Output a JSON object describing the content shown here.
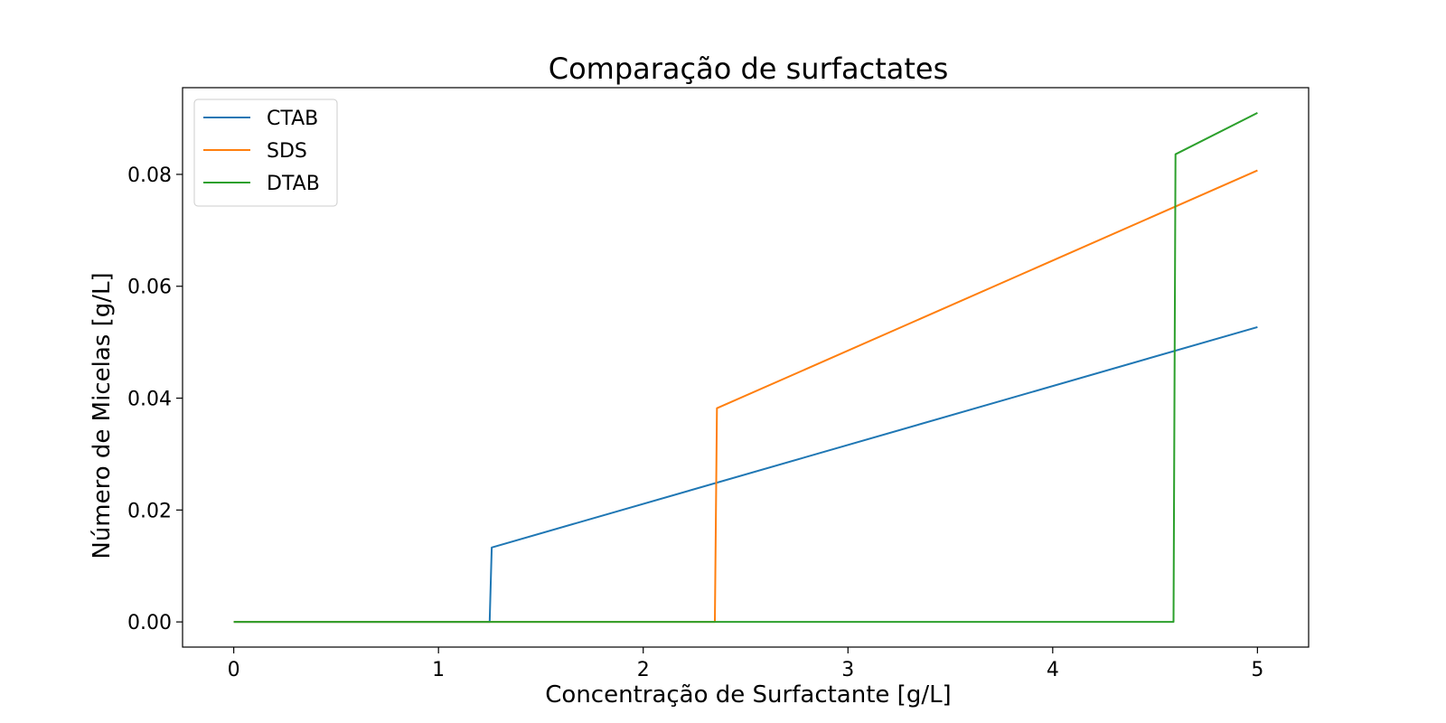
{
  "chart_data": {
    "type": "line",
    "title": "Comparação de surfactates",
    "xlabel": "Concentração de Surfactante [g/L]",
    "ylabel": "Número de Micelas [g/L]",
    "xlim": [
      -0.25,
      5.25
    ],
    "ylim": [
      -0.0045,
      0.0955
    ],
    "xticks": [
      0,
      1,
      2,
      3,
      4,
      5
    ],
    "xtick_labels": [
      "0",
      "1",
      "2",
      "3",
      "4",
      "5"
    ],
    "yticks": [
      0.0,
      0.02,
      0.04,
      0.06,
      0.08
    ],
    "ytick_labels": [
      "0.00",
      "0.02",
      "0.04",
      "0.06",
      "0.08"
    ],
    "grid": false,
    "legend_position": "upper-left",
    "series": [
      {
        "name": "CTAB",
        "color": "#1f77b4",
        "x": [
          0,
          1.25,
          1.26,
          5
        ],
        "y": [
          0,
          0,
          0.0133,
          0.0527
        ]
      },
      {
        "name": "SDS",
        "color": "#ff7f0e",
        "x": [
          0,
          2.35,
          2.36,
          5
        ],
        "y": [
          0,
          0,
          0.0382,
          0.0807
        ]
      },
      {
        "name": "DTAB",
        "color": "#2ca02c",
        "x": [
          0,
          4.59,
          4.6,
          5
        ],
        "y": [
          0,
          0,
          0.0836,
          0.091
        ]
      }
    ]
  }
}
